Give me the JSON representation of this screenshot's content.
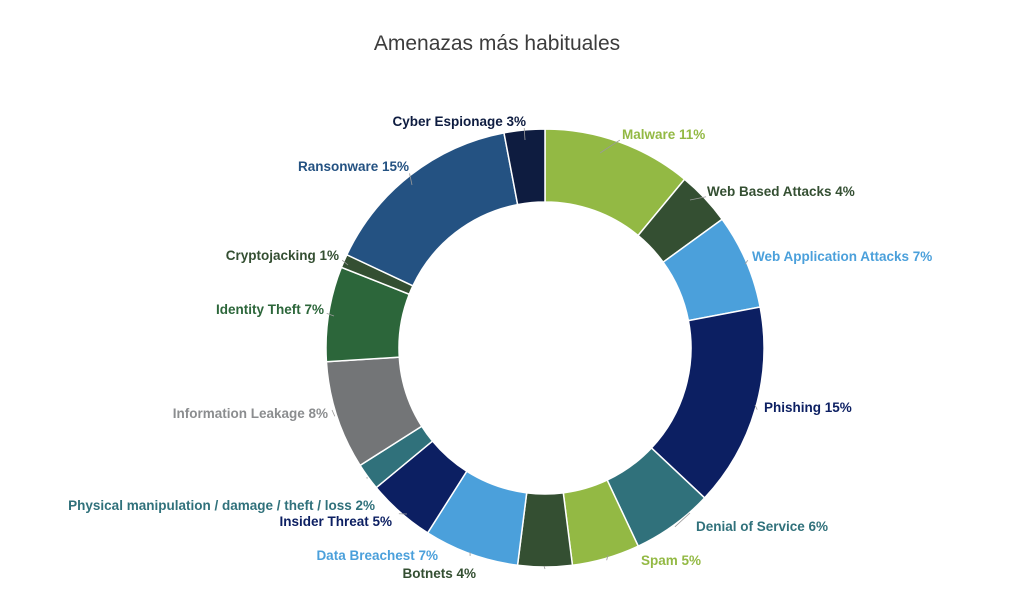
{
  "chart_data": {
    "type": "pie",
    "title": "Amenazas más habituales",
    "slices": [
      {
        "name": "Malware",
        "value": 11,
        "label": "Malware 11%",
        "color": "#93b944"
      },
      {
        "name": "Web Based Attacks",
        "value": 4,
        "label": "Web Based Attacks 4%",
        "color": "#344f32"
      },
      {
        "name": "Web Application Attacks",
        "value": 7,
        "label": "Web Application Attacks 7%",
        "color": "#4ba0db"
      },
      {
        "name": "Phishing",
        "value": 15,
        "label": "Phishing 15%",
        "color": "#0c1f62"
      },
      {
        "name": "Denial of Service",
        "value": 6,
        "label": "Denial of Service 6%",
        "color": "#30717b"
      },
      {
        "name": "Spam",
        "value": 5,
        "label": "Spam 5%",
        "color": "#93b944"
      },
      {
        "name": "Botnets",
        "value": 4,
        "label": "Botnets 4%",
        "color": "#344f32"
      },
      {
        "name": "Data Breachest",
        "value": 7,
        "label": "Data Breachest 7%",
        "color": "#4ba0db"
      },
      {
        "name": "Insider Threat",
        "value": 5,
        "label": "Insider Threat 5%",
        "color": "#0c1f62"
      },
      {
        "name": "Physical manipulation / damage / theft / loss",
        "value": 2,
        "label": "Physical manipulation / damage / theft / loss 2%",
        "color": "#30717b"
      },
      {
        "name": "Information Leakage",
        "value": 8,
        "label": "Information Leakage 8%",
        "color": "#737577"
      },
      {
        "name": "Identity Theft",
        "value": 7,
        "label": "Identity Theft 7%",
        "color": "#2c663a"
      },
      {
        "name": "Cryptojacking",
        "value": 1,
        "label": "Cryptojacking 1%",
        "color": "#344f32"
      },
      {
        "name": "Ransonware",
        "value": 15,
        "label": "Ransonware 15%",
        "color": "#245282"
      },
      {
        "name": "Cyber Espionage",
        "value": 3,
        "label": "Cyber Espionage 3%",
        "color": "#0e1c40"
      }
    ],
    "legend": "none",
    "grid": false
  }
}
